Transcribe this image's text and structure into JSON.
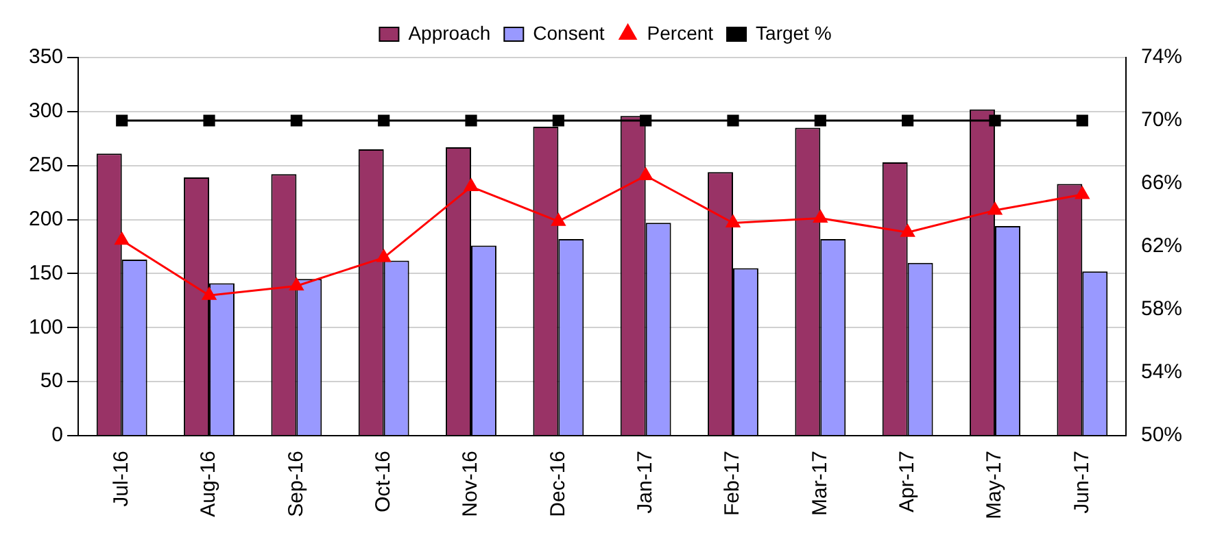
{
  "chart_data": {
    "type": "bar",
    "categories": [
      "Jul-16",
      "Aug-16",
      "Sep-16",
      "Oct-16",
      "Nov-16",
      "Dec-16",
      "Jan-17",
      "Feb-17",
      "Mar-17",
      "Apr-17",
      "May-17",
      "Jun-17"
    ],
    "series": [
      {
        "name": "Approach",
        "color": "#993366",
        "values": [
          261,
          239,
          242,
          265,
          267,
          286,
          296,
          244,
          285,
          253,
          302,
          233
        ]
      },
      {
        "name": "Consent",
        "color": "#9999ff",
        "values": [
          163,
          141,
          145,
          162,
          176,
          182,
          197,
          155,
          182,
          160,
          194,
          152
        ]
      },
      {
        "name": "Percent",
        "type": "line",
        "axis": "y2",
        "color": "#ff0000",
        "marker": "triangle",
        "values": [
          62.4,
          58.9,
          59.5,
          61.3,
          65.8,
          63.6,
          66.5,
          63.5,
          63.8,
          62.9,
          64.3,
          65.3
        ]
      },
      {
        "name": "Target %",
        "type": "line",
        "axis": "y2",
        "color": "#000000",
        "marker": "square",
        "values": [
          70,
          70,
          70,
          70,
          70,
          70,
          70,
          70,
          70,
          70,
          70,
          70
        ]
      }
    ],
    "ylim": [
      0,
      350
    ],
    "yticks": [
      0,
      50,
      100,
      150,
      200,
      250,
      300,
      350
    ],
    "y2lim": [
      50,
      74
    ],
    "y2ticks": [
      {
        "value": 50,
        "label": "50%"
      },
      {
        "value": 54,
        "label": "54%"
      },
      {
        "value": 58,
        "label": "58%"
      },
      {
        "value": 62,
        "label": "62%"
      },
      {
        "value": 66,
        "label": "66%"
      },
      {
        "value": 70,
        "label": "70%"
      },
      {
        "value": 74,
        "label": "74%"
      }
    ],
    "grid": "y",
    "legend": "top"
  }
}
